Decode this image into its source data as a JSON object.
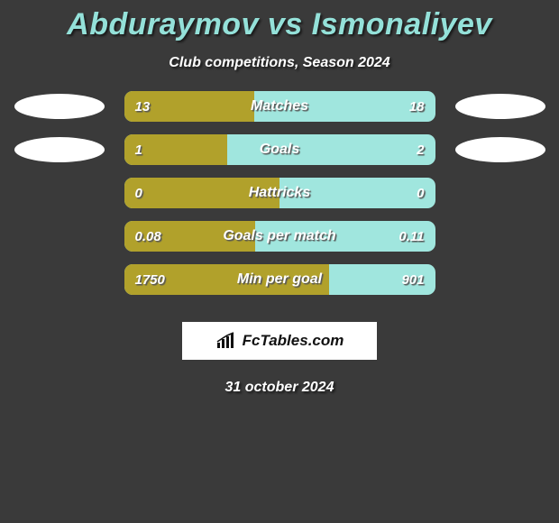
{
  "colors": {
    "background": "#3a3a3a",
    "title": "#94e1d9",
    "bar_right": "#a0e6de",
    "bar_left": "#b1a12b",
    "bubble": "#ffffff",
    "text": "#ffffff",
    "brand_bg": "#ffffff"
  },
  "title": "Abduraymov vs Ismonaliyev",
  "subtitle": "Club competitions, Season 2024",
  "rows": [
    {
      "label": "Matches",
      "left": "13",
      "right": "18",
      "left_pct": 41.9,
      "show_bubbles": true
    },
    {
      "label": "Goals",
      "left": "1",
      "right": "2",
      "left_pct": 33.3,
      "show_bubbles": true
    },
    {
      "label": "Hattricks",
      "left": "0",
      "right": "0",
      "left_pct": 50.0,
      "show_bubbles": false
    },
    {
      "label": "Goals per match",
      "left": "0.08",
      "right": "0.11",
      "left_pct": 42.1,
      "show_bubbles": false
    },
    {
      "label": "Min per goal",
      "left": "1750",
      "right": "901",
      "left_pct": 66.0,
      "show_bubbles": false
    }
  ],
  "brand": "FcTables.com",
  "date": "31 october 2024"
}
